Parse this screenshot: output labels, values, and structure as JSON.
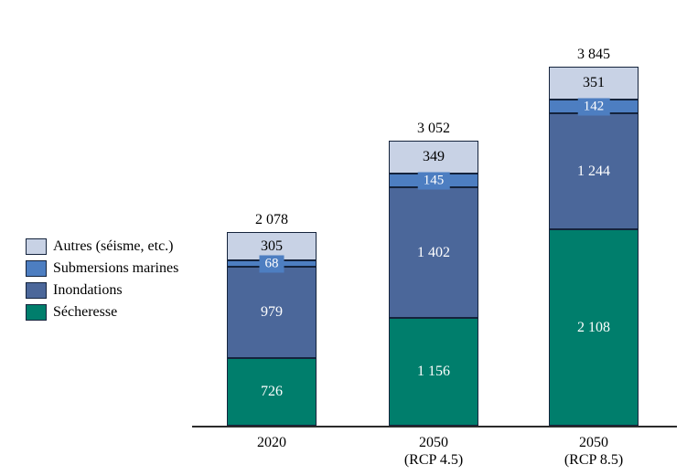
{
  "chart_data": {
    "type": "bar",
    "stacked": true,
    "title": "",
    "xlabel": "",
    "ylabel": "",
    "y_axis_visible": false,
    "x_axis_line": true,
    "legend_position": "left",
    "categories": [
      {
        "lines": [
          "2020"
        ]
      },
      {
        "lines": [
          "2050",
          "(RCP 4.5)"
        ]
      },
      {
        "lines": [
          "2050",
          "(RCP 8.5)"
        ]
      }
    ],
    "series": [
      {
        "name": "Sécheresse",
        "slug": "secheresse",
        "color": "#007e6c",
        "label_color": "#ffffff",
        "values": [
          726,
          1156,
          2108
        ],
        "value_labels": [
          "726",
          "1 156",
          "2 108"
        ]
      },
      {
        "name": "Inondations",
        "slug": "inondations",
        "color": "#4b679a",
        "label_color": "#ffffff",
        "values": [
          979,
          1402,
          1244
        ],
        "value_labels": [
          "979",
          "1 402",
          "1 244"
        ]
      },
      {
        "name": "Submersions marines",
        "slug": "submersions-marines",
        "color": "#4d7ec1",
        "label_color": "#ffffff",
        "values": [
          68,
          145,
          142
        ],
        "value_labels": [
          "68",
          "145",
          "142"
        ]
      },
      {
        "name": "Autres (séisme, etc.)",
        "slug": "autres",
        "color": "#c8d2e5",
        "label_color": "#000000",
        "values": [
          305,
          349,
          351
        ],
        "value_labels": [
          "305",
          "349",
          "351"
        ]
      }
    ],
    "totals": [
      2078,
      3052,
      3845
    ],
    "total_labels": [
      "2 078",
      "3 052",
      "3 845"
    ],
    "legend_order": [
      "Autres (séisme, etc.)",
      "Submersions marines",
      "Inondations",
      "Sécheresse"
    ]
  },
  "styles": {
    "segment_border_color": "#14233c",
    "axis_line_color": "#2b2b2b",
    "text_color": "#000000",
    "background_color": "#ffffff"
  }
}
